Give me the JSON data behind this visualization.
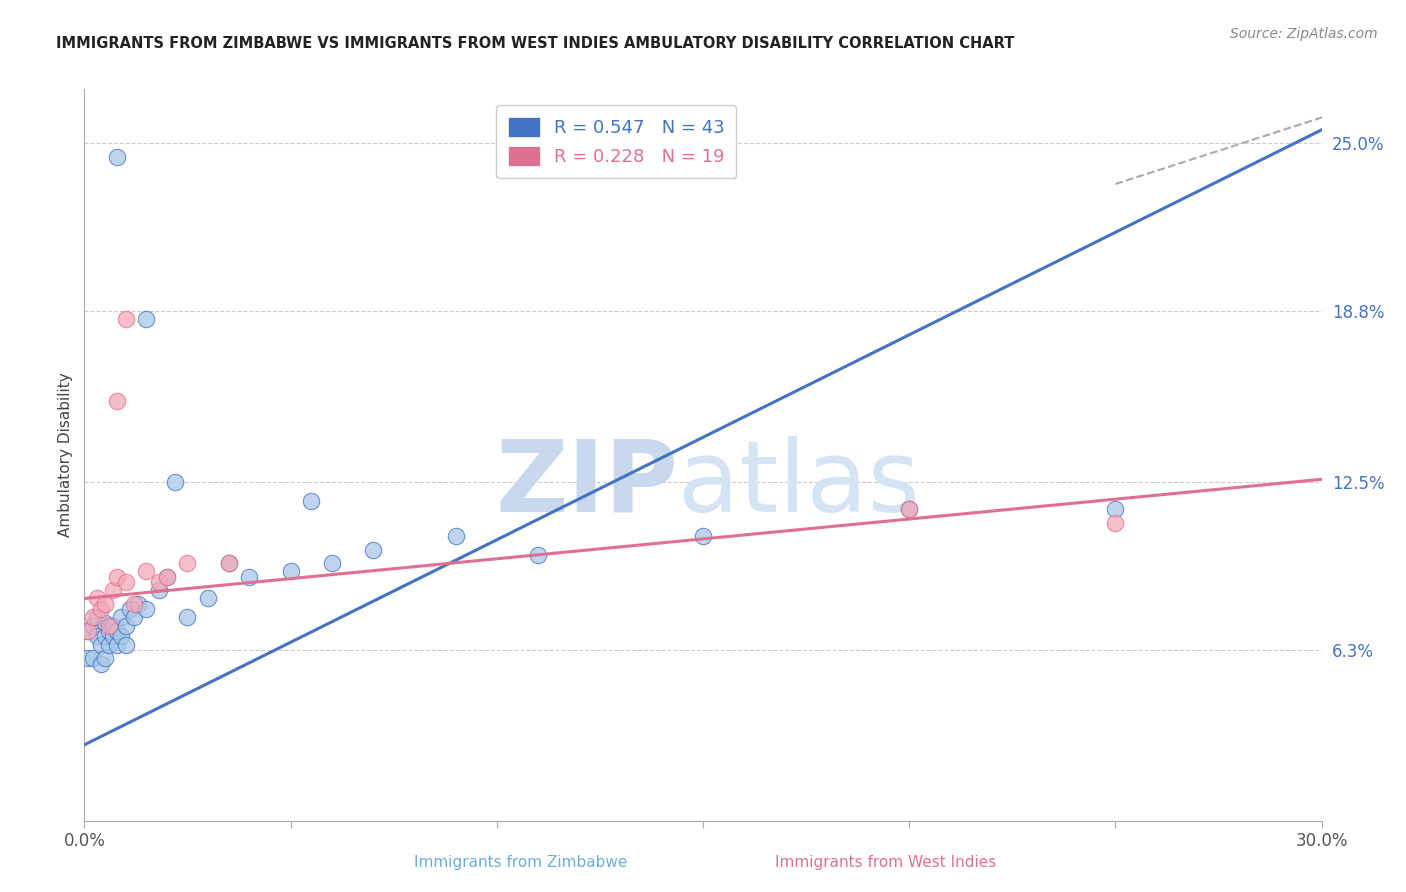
{
  "title": "IMMIGRANTS FROM ZIMBABWE VS IMMIGRANTS FROM WEST INDIES AMBULATORY DISABILITY CORRELATION CHART",
  "source": "Source: ZipAtlas.com",
  "ylabel": "Ambulatory Disability",
  "yticks": [
    0.063,
    0.125,
    0.188,
    0.25
  ],
  "ytick_labels": [
    "6.3%",
    "12.5%",
    "18.8%",
    "25.0%"
  ],
  "xticks": [
    0.0,
    0.05,
    0.1,
    0.15,
    0.2,
    0.25,
    0.3
  ],
  "xmin": 0.0,
  "xmax": 0.3,
  "ymin": 0.0,
  "ymax": 0.27,
  "blue_color": "#a8c8e8",
  "pink_color": "#f4a8b8",
  "blue_line_color": "#4472c4",
  "pink_line_color": "#e07090",
  "watermark_zip": "ZIP",
  "watermark_atlas": "atlas",
  "blue_x": [
    0.001,
    0.001,
    0.002,
    0.002,
    0.003,
    0.003,
    0.004,
    0.004,
    0.005,
    0.005,
    0.005,
    0.006,
    0.006,
    0.007,
    0.007,
    0.008,
    0.008,
    0.009,
    0.009,
    0.01,
    0.01,
    0.011,
    0.012,
    0.013,
    0.015,
    0.018,
    0.02,
    0.025,
    0.03,
    0.035,
    0.04,
    0.05,
    0.06,
    0.07,
    0.09,
    0.11,
    0.15,
    0.2,
    0.25,
    0.022,
    0.055,
    0.015,
    0.008
  ],
  "blue_y": [
    0.06,
    0.07,
    0.06,
    0.072,
    0.068,
    0.075,
    0.058,
    0.065,
    0.06,
    0.068,
    0.073,
    0.065,
    0.07,
    0.068,
    0.072,
    0.065,
    0.07,
    0.068,
    0.075,
    0.072,
    0.065,
    0.078,
    0.075,
    0.08,
    0.078,
    0.085,
    0.09,
    0.075,
    0.082,
    0.095,
    0.09,
    0.092,
    0.095,
    0.1,
    0.105,
    0.098,
    0.105,
    0.115,
    0.115,
    0.125,
    0.118,
    0.185,
    0.245
  ],
  "pink_x": [
    0.001,
    0.002,
    0.003,
    0.004,
    0.005,
    0.006,
    0.007,
    0.008,
    0.01,
    0.012,
    0.015,
    0.018,
    0.02,
    0.025,
    0.2,
    0.25,
    0.035,
    0.008,
    0.01
  ],
  "pink_y": [
    0.07,
    0.075,
    0.082,
    0.078,
    0.08,
    0.072,
    0.085,
    0.09,
    0.088,
    0.08,
    0.092,
    0.088,
    0.09,
    0.095,
    0.115,
    0.11,
    0.095,
    0.155,
    0.185
  ],
  "blue_line_x": [
    0.0,
    0.3
  ],
  "blue_line_y": [
    0.028,
    0.255
  ],
  "pink_line_x": [
    0.0,
    0.3
  ],
  "pink_line_y": [
    0.082,
    0.126
  ],
  "legend_items": [
    {
      "label": "R = 0.547   N = 43",
      "color": "#4472c4"
    },
    {
      "label": "R = 0.228   N = 19",
      "color": "#e07090"
    }
  ]
}
